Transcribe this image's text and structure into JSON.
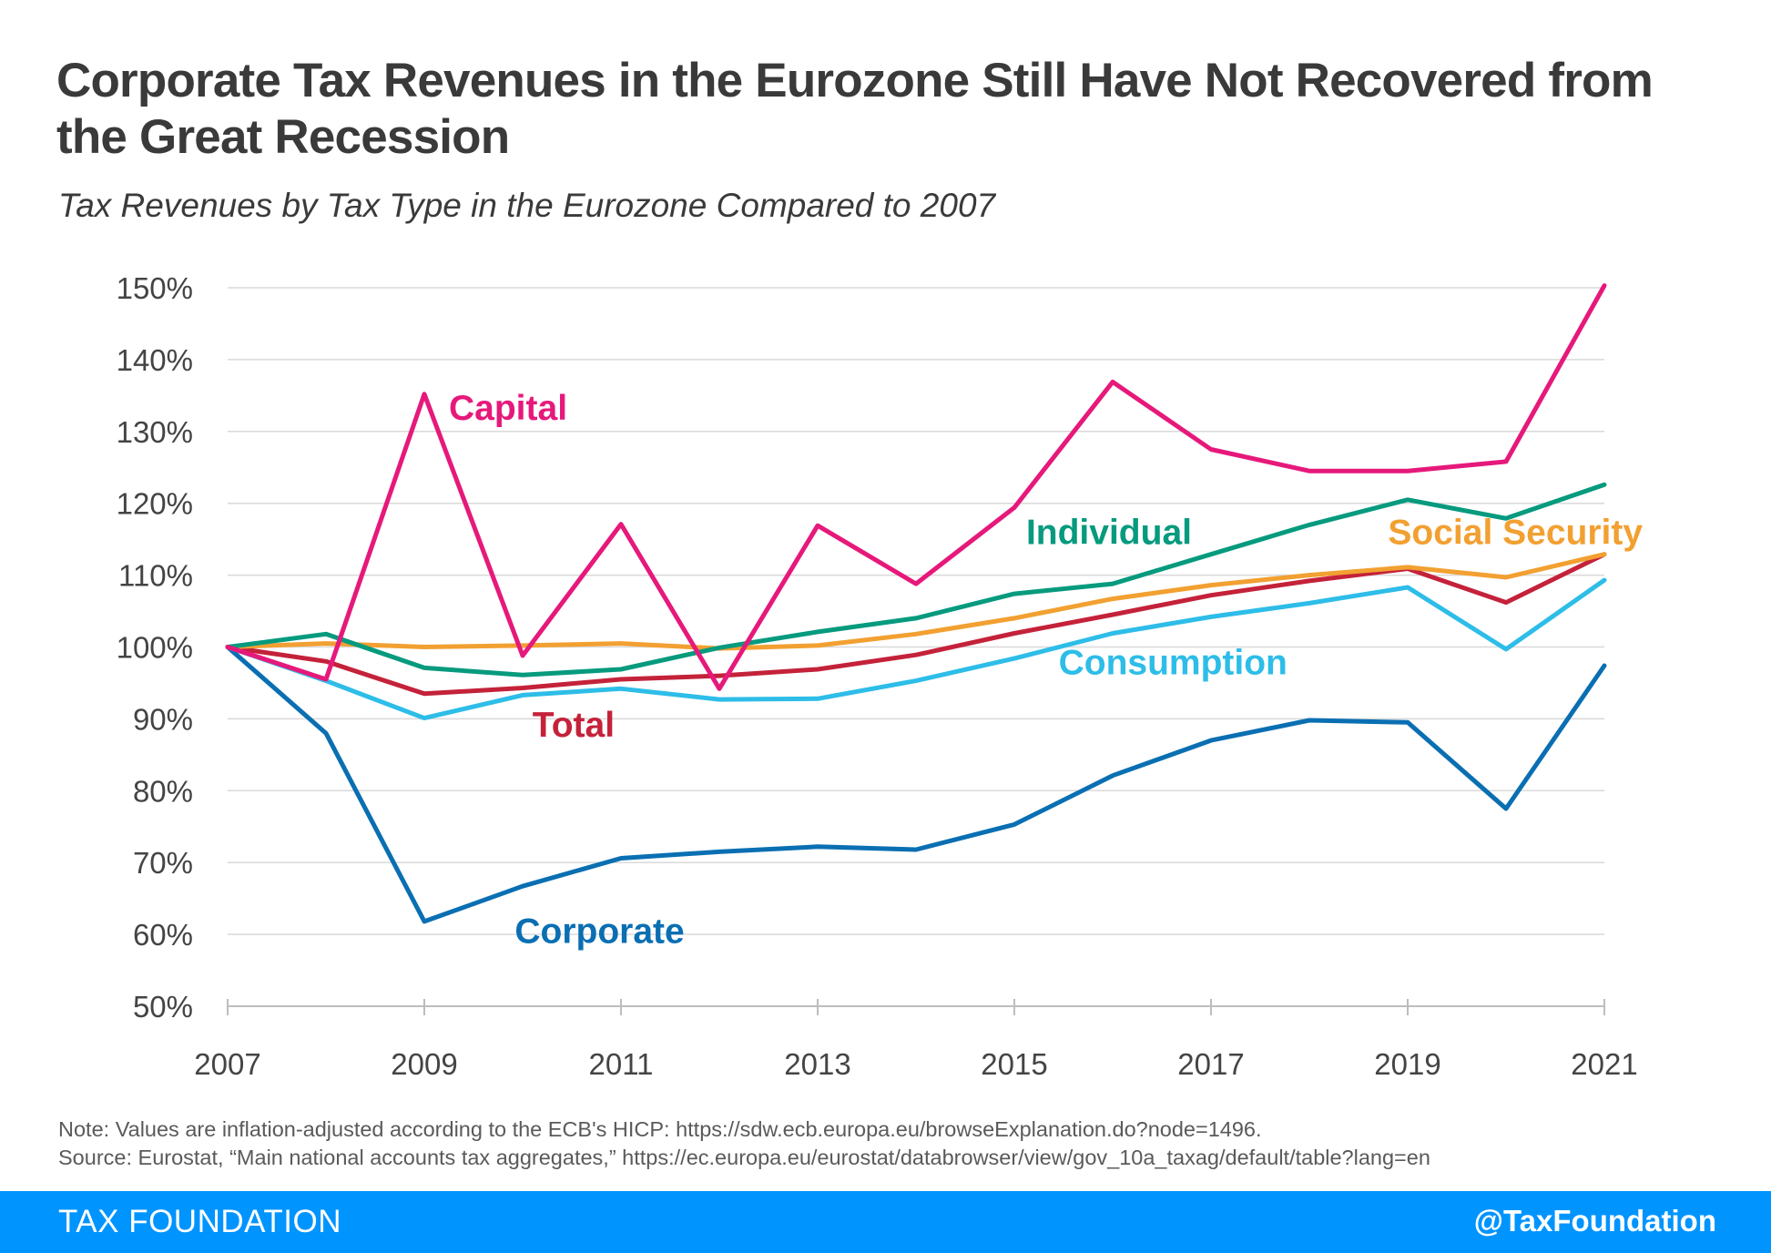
{
  "header": {
    "title": "Corporate Tax Revenues in the Eurozone Still Have Not Recovered from the Great Recession",
    "subtitle": "Tax Revenues by Tax Type in the Eurozone Compared to 2007"
  },
  "chart_data": {
    "type": "line",
    "x": [
      2007,
      2008,
      2009,
      2010,
      2011,
      2012,
      2013,
      2014,
      2015,
      2016,
      2017,
      2018,
      2019,
      2020,
      2021
    ],
    "xticks": [
      "2007",
      "2009",
      "2011",
      "2013",
      "2015",
      "2017",
      "2019",
      "2021"
    ],
    "yticks": [
      "50%",
      "60%",
      "70%",
      "80%",
      "90%",
      "100%",
      "110%",
      "120%",
      "130%",
      "140%",
      "150%"
    ],
    "ylim": [
      50,
      150
    ],
    "grid": true,
    "series": [
      {
        "name": "Capital",
        "color": "#e6197b",
        "values": [
          100,
          95.5,
          135.2,
          98.8,
          117.1,
          94.2,
          116.9,
          108.8,
          119.4,
          136.9,
          127.5,
          124.5,
          124.5,
          125.8,
          150.3
        ]
      },
      {
        "name": "Individual",
        "color": "#069a7e",
        "values": [
          100,
          101.8,
          97.1,
          96.1,
          96.9,
          99.9,
          102.1,
          104.0,
          107.4,
          108.8,
          112.9,
          117.0,
          120.5,
          117.9,
          122.6
        ]
      },
      {
        "name": "Social Security",
        "color": "#f2a031",
        "values": [
          100,
          100.5,
          100.0,
          100.2,
          100.5,
          99.8,
          100.2,
          101.8,
          104.0,
          106.7,
          108.6,
          110.0,
          111.1,
          109.7,
          112.9
        ]
      },
      {
        "name": "Total",
        "color": "#c4223a",
        "values": [
          100,
          98.0,
          93.5,
          94.3,
          95.5,
          96.0,
          96.9,
          98.9,
          101.9,
          104.5,
          107.2,
          109.2,
          110.9,
          106.2,
          112.9
        ]
      },
      {
        "name": "Consumption",
        "color": "#2dbde8",
        "values": [
          100,
          95.3,
          90.1,
          93.3,
          94.2,
          92.7,
          92.8,
          95.3,
          98.4,
          101.9,
          104.2,
          106.1,
          108.3,
          99.7,
          109.3
        ]
      },
      {
        "name": "Corporate",
        "color": "#0a6fb2",
        "values": [
          100,
          88.0,
          61.8,
          66.7,
          70.6,
          71.5,
          72.2,
          71.8,
          75.3,
          82.1,
          87.0,
          89.8,
          89.5,
          77.5,
          97.4
        ]
      }
    ]
  },
  "notes": {
    "note": "Note: Values are inflation-adjusted according to the ECB's HICP: https://sdw.ecb.europa.eu/browseExplanation.do?node=1496.",
    "source": "Source: Eurostat, “Main national accounts tax aggregates,” https://ec.europa.eu/eurostat/databrowser/view/gov_10a_taxag/default/table?lang=en"
  },
  "footer": {
    "brand": "TAX FOUNDATION",
    "handle": "@TaxFoundation",
    "color": "#0094ff"
  }
}
